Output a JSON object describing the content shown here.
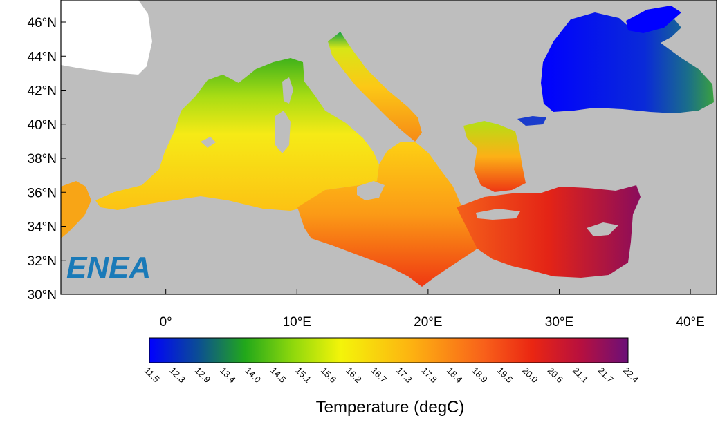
{
  "map": {
    "lat_ticks": [
      {
        "value": 46,
        "label": "46°N"
      },
      {
        "value": 44,
        "label": "44°N"
      },
      {
        "value": 42,
        "label": "42°N"
      },
      {
        "value": 40,
        "label": "40°N"
      },
      {
        "value": 38,
        "label": "38°N"
      },
      {
        "value": 36,
        "label": "36°N"
      },
      {
        "value": 34,
        "label": "34°N"
      },
      {
        "value": 32,
        "label": "32°N"
      },
      {
        "value": 30,
        "label": "30°N"
      }
    ],
    "lon_ticks": [
      {
        "value": 0,
        "label": "0°"
      },
      {
        "value": 10,
        "label": "10°E"
      },
      {
        "value": 20,
        "label": "20°E"
      },
      {
        "value": 30,
        "label": "30°E"
      },
      {
        "value": 40,
        "label": "40°E"
      }
    ],
    "lon_range": [
      -8,
      42
    ],
    "lat_range": [
      30,
      47.3
    ],
    "logo_text": "ENEA"
  },
  "colorbar": {
    "title": "Temperature (degC)",
    "labels": [
      "11.5",
      "12.3",
      "12.9",
      "13.4",
      "14.0",
      "14.5",
      "15.1",
      "15.6",
      "16.2",
      "16.7",
      "17.3",
      "17.8",
      "18.4",
      "18.9",
      "19.5",
      "20.0",
      "20.6",
      "21.1",
      "21.7",
      "22.4"
    ],
    "colors": [
      "#0000ff",
      "#0a28c8",
      "#0d4f96",
      "#0e7a5a",
      "#19a02d",
      "#3cbe14",
      "#7ad20a",
      "#bde60a",
      "#f4f40a",
      "#fbe20a",
      "#fdcb0c",
      "#fdb111",
      "#fc9214",
      "#fa6f14",
      "#f64a12",
      "#ee2a14",
      "#d81a26",
      "#b8103e",
      "#8f0a58",
      "#6b0f78"
    ]
  },
  "colors": {
    "land": "#bebebe",
    "white_region": "#ffffff",
    "logo": "#1a7ab8"
  }
}
